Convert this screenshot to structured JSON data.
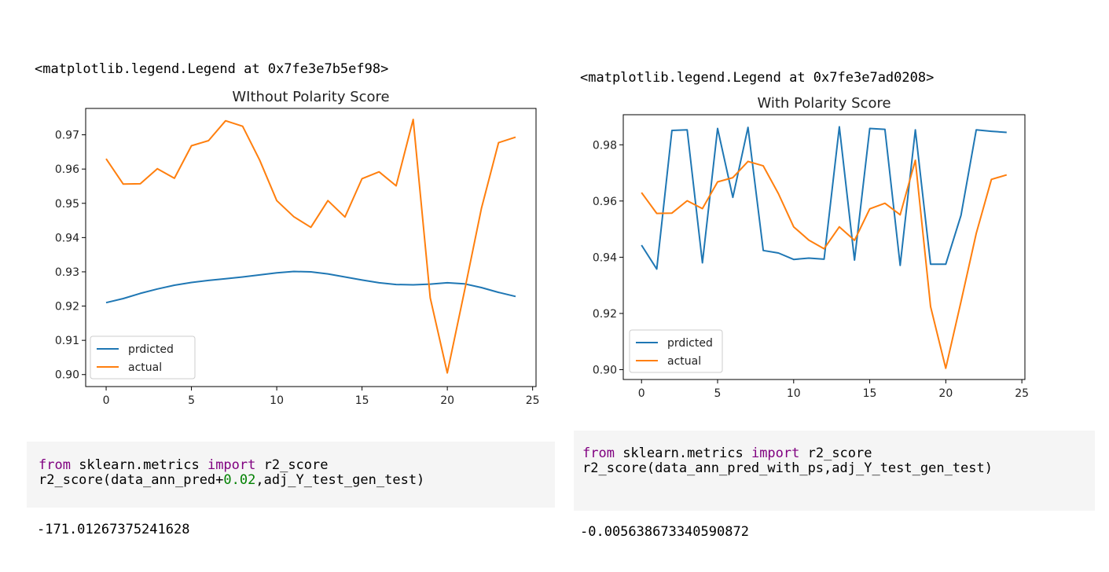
{
  "panels": [
    {
      "repr": "<matplotlib.legend.Legend at 0x7fe3e7b5ef98>",
      "code": {
        "line1": {
          "kw1": "from",
          "mod": " sklearn.metrics ",
          "kw2": "import",
          "name": " r2_score"
        },
        "line2": {
          "pre": "r2_score(data_ann_pred+",
          "num": "0.02",
          "post": ",adj_Y_test_gen_test)"
        }
      },
      "result": "-171.01267375241628"
    },
    {
      "repr": "<matplotlib.legend.Legend at 0x7fe3e7ad0208>",
      "code": {
        "line1": {
          "kw1": "from",
          "mod": " sklearn.metrics ",
          "kw2": "import",
          "name": " r2_score"
        },
        "line2": {
          "pre": "r2_score(data_ann_pred_with_ps,adj_Y_test_gen_test)",
          "num": "",
          "post": ""
        }
      },
      "result": "-0.005638673340590872"
    }
  ],
  "colors": {
    "predicted": "#1f77b4",
    "actual": "#ff7f0e"
  },
  "chart_data": [
    {
      "type": "line",
      "title": "WIthout Polarity Score",
      "xlabel": "",
      "ylabel": "",
      "xlim": [
        -1.2,
        25.2
      ],
      "ylim": [
        0.8965,
        0.9777
      ],
      "xticks": [
        0,
        5,
        10,
        15,
        20,
        25
      ],
      "yticks": [
        0.9,
        0.91,
        0.92,
        0.93,
        0.94,
        0.95,
        0.96,
        0.97
      ],
      "ytick_labels": [
        "0.90",
        "0.91",
        "0.92",
        "0.93",
        "0.94",
        "0.95",
        "0.96",
        "0.97"
      ],
      "legend_position": "lower-left",
      "grid": false,
      "x": [
        0,
        1,
        2,
        3,
        4,
        5,
        6,
        7,
        8,
        9,
        10,
        11,
        12,
        13,
        14,
        15,
        16,
        17,
        18,
        19,
        20,
        21,
        22,
        23,
        24
      ],
      "series": [
        {
          "name": "prdicted",
          "values": [
            0.921,
            0.9222,
            0.9237,
            0.925,
            0.9261,
            0.9269,
            0.9275,
            0.928,
            0.9285,
            0.9291,
            0.9297,
            0.9301,
            0.93,
            0.9294,
            0.9285,
            0.9276,
            0.9268,
            0.9263,
            0.9262,
            0.9264,
            0.9268,
            0.9265,
            0.9254,
            0.924,
            0.9228
          ]
        },
        {
          "name": "actual",
          "values": [
            0.963,
            0.9556,
            0.9557,
            0.9601,
            0.9573,
            0.9668,
            0.9683,
            0.9741,
            0.9725,
            0.9626,
            0.9508,
            0.9461,
            0.943,
            0.9508,
            0.946,
            0.9572,
            0.9592,
            0.9551,
            0.9745,
            0.9224,
            0.9005,
            0.9242,
            0.9485,
            0.9677,
            0.9693
          ]
        }
      ]
    },
    {
      "type": "line",
      "title": "With Polarity Score",
      "xlabel": "",
      "ylabel": "",
      "xlim": [
        -1.2,
        25.2
      ],
      "ylim": [
        0.8965,
        0.9907
      ],
      "xticks": [
        0,
        5,
        10,
        15,
        20,
        25
      ],
      "yticks": [
        0.9,
        0.92,
        0.94,
        0.96,
        0.98
      ],
      "ytick_labels": [
        "0.90",
        "0.92",
        "0.94",
        "0.96",
        "0.98"
      ],
      "legend_position": "lower-left",
      "grid": false,
      "x": [
        0,
        1,
        2,
        3,
        4,
        5,
        6,
        7,
        8,
        9,
        10,
        11,
        12,
        13,
        14,
        15,
        16,
        17,
        18,
        19,
        20,
        21,
        22,
        23,
        24
      ],
      "series": [
        {
          "name": "prdicted",
          "values": [
            0.9443,
            0.9358,
            0.9851,
            0.9853,
            0.938,
            0.9858,
            0.9613,
            0.9862,
            0.9424,
            0.9415,
            0.9392,
            0.9397,
            0.9393,
            0.9864,
            0.939,
            0.9858,
            0.9855,
            0.9371,
            0.9853,
            0.9375,
            0.9375,
            0.9549,
            0.9853,
            0.9848,
            0.9844
          ]
        },
        {
          "name": "actual",
          "values": [
            0.963,
            0.9556,
            0.9557,
            0.9601,
            0.9573,
            0.9668,
            0.9683,
            0.9741,
            0.9725,
            0.9626,
            0.9508,
            0.9461,
            0.943,
            0.9508,
            0.946,
            0.9572,
            0.9592,
            0.9551,
            0.9745,
            0.9224,
            0.9005,
            0.9242,
            0.9485,
            0.9677,
            0.9693
          ]
        }
      ]
    }
  ]
}
